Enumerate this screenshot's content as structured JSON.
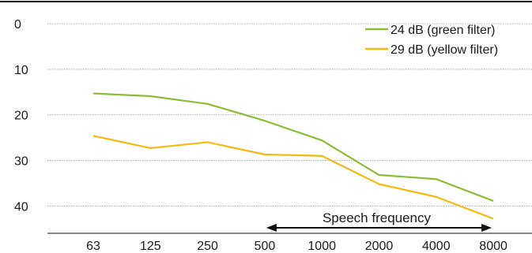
{
  "chart_data": {
    "type": "line",
    "title": "",
    "xlabel": "",
    "ylabel": "",
    "categories": [
      "63",
      "125",
      "250",
      "500",
      "1000",
      "2000",
      "4000",
      "8000"
    ],
    "y_ticks": [
      0,
      10,
      20,
      30,
      40
    ],
    "ylim": [
      -4,
      46
    ],
    "y_inverted": true,
    "grid": true,
    "legend_position": "top-right",
    "series": [
      {
        "name": "24 dB (green filter)",
        "color": "#8dbb35",
        "values": [
          15.3,
          15.9,
          17.6,
          21.3,
          25.6,
          33.2,
          34.1,
          38.9
        ]
      },
      {
        "name": "29 dB (yellow filter)",
        "color": "#f5b90f",
        "values": [
          24.6,
          27.3,
          26.0,
          28.7,
          29.0,
          35.2,
          38.0,
          42.8
        ]
      }
    ],
    "annotations": [
      {
        "text": "Speech frequency",
        "from": "500",
        "to": "8000"
      }
    ]
  }
}
